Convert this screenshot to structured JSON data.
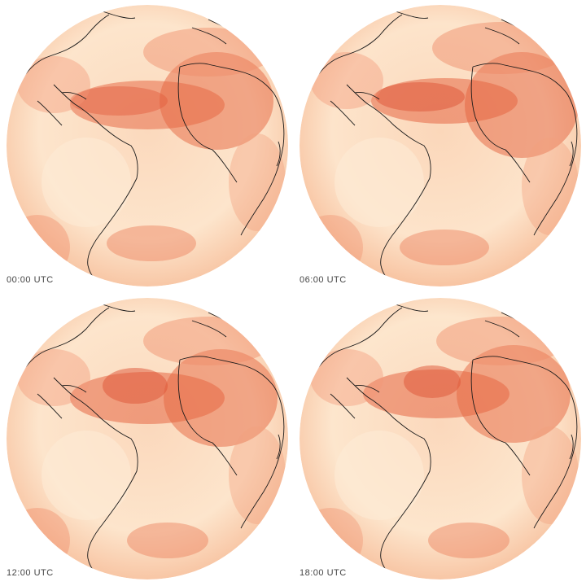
{
  "panels": [
    {
      "time_label": "00:00 UTC"
    },
    {
      "time_label": "06:00 UTC"
    },
    {
      "time_label": "12:00 UTC"
    },
    {
      "time_label": "18:00 UTC"
    }
  ],
  "colors": {
    "background": "#ffffff",
    "ocean_light": "#fde8cf",
    "field_mid": "#f6a57c",
    "field_high": "#e2593a",
    "coastline": "#1a1a1a"
  }
}
